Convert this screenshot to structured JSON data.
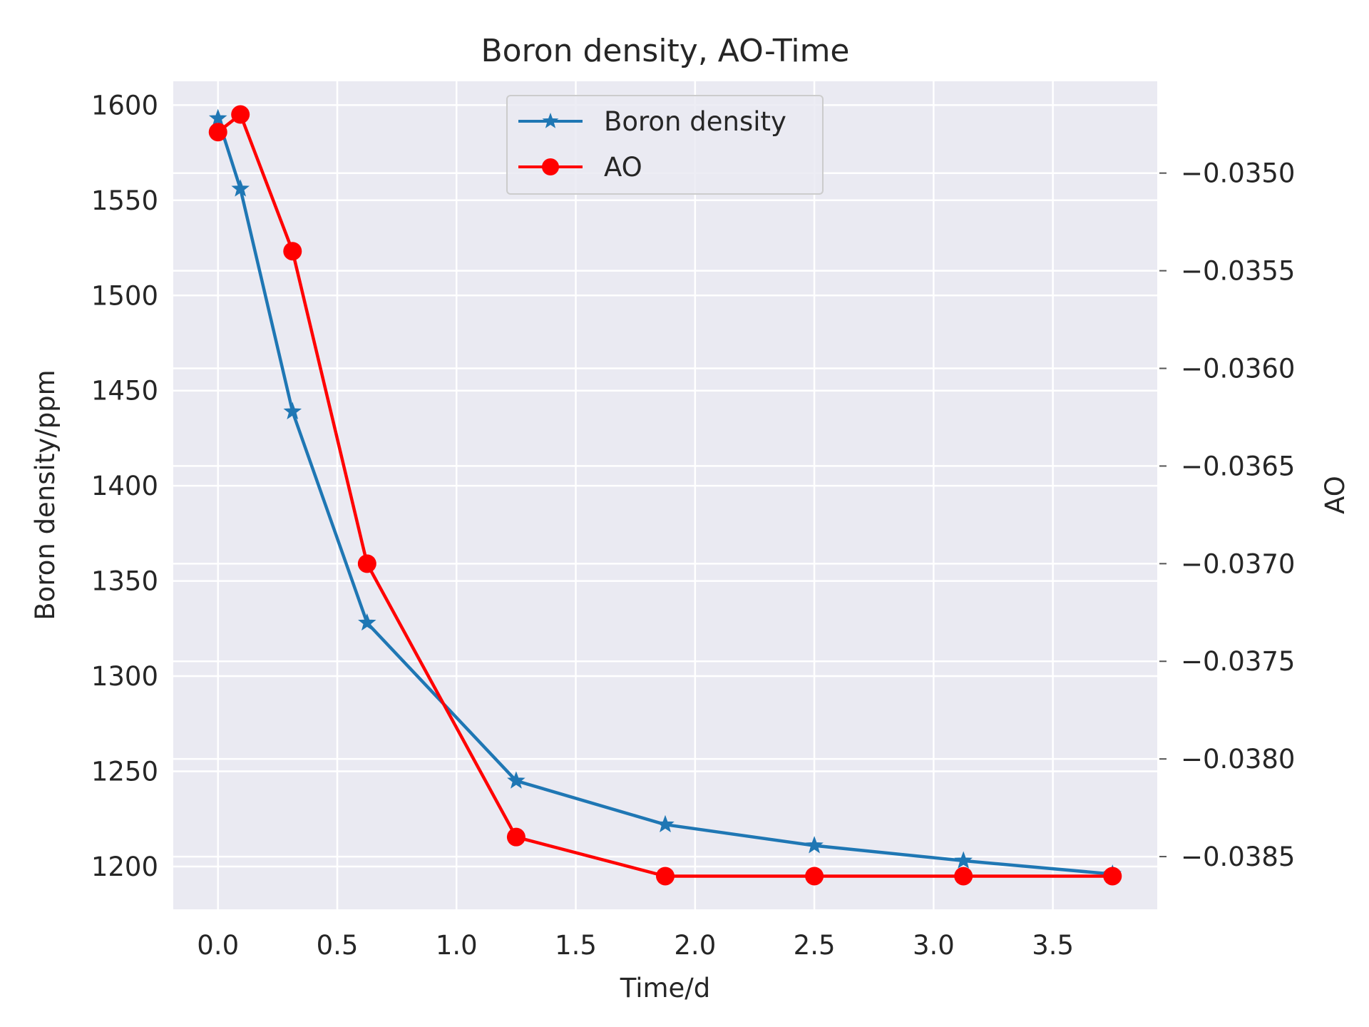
{
  "chart_data": {
    "type": "line",
    "title": "Boron density, AO-Time",
    "xlabel": "Time/d",
    "ylabel": "Boron density/ppm",
    "y2label": "AO",
    "xlim": [
      -0.1875,
      3.9375
    ],
    "ylim": [
      1177.5,
      1612.5
    ],
    "y2lim": [
      -0.03877,
      -0.03453
    ],
    "xticks": [
      "0.0",
      "0.5",
      "1.0",
      "1.5",
      "2.0",
      "2.5",
      "3.0",
      "3.5"
    ],
    "yticks": [
      "1200",
      "1250",
      "1300",
      "1350",
      "1400",
      "1450",
      "1500",
      "1550",
      "1600"
    ],
    "y2ticks": [
      "−0.0385",
      "−0.0380",
      "−0.0375",
      "−0.0370",
      "−0.0365",
      "−0.0360",
      "−0.0355",
      "−0.0350"
    ],
    "grid": true,
    "legend_position": "top-center",
    "series": [
      {
        "name": "Boron density",
        "axis": "left",
        "color": "#1f77b4",
        "marker": "star",
        "x": [
          0.0,
          0.094,
          0.3125,
          0.625,
          1.25,
          1.875,
          2.5,
          3.125,
          3.75
        ],
        "y": [
          1593,
          1556,
          1439,
          1328,
          1245,
          1222,
          1211,
          1203,
          1196
        ]
      },
      {
        "name": "AO",
        "axis": "right",
        "color": "#ff0000",
        "marker": "circle",
        "x": [
          0.0,
          0.094,
          0.3125,
          0.625,
          1.25,
          1.875,
          2.5,
          3.125,
          3.75
        ],
        "y": [
          -0.03479,
          -0.0347,
          -0.0354,
          -0.037,
          -0.0384,
          -0.0386,
          -0.0386,
          -0.0386,
          -0.0386
        ]
      }
    ]
  }
}
